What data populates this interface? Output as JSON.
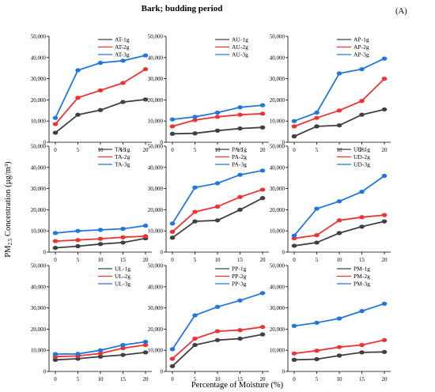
{
  "figure": {
    "title": "Bark; budding period",
    "panel_label": "(A)",
    "xlabel": "Percentage of Moisture (%)",
    "ylabel_prefix": "PM",
    "ylabel_sub": "2.5",
    "ylabel_suffix": " Concentration (µg/m³)",
    "colors": [
      "#404040",
      "#ee3333",
      "#2277dd"
    ]
  },
  "chart_data": [
    {
      "type": "line",
      "x": [
        0,
        5,
        10,
        15,
        20
      ],
      "ylim": [
        0,
        50000
      ],
      "yticks": [
        0,
        10000,
        20000,
        30000,
        40000,
        50000
      ],
      "ytick_labels": [
        "0",
        "10,000",
        "20,000",
        "30,000",
        "40,000",
        "50,000"
      ],
      "series": [
        {
          "name": "AT-1g",
          "values": [
            4500,
            13000,
            15200,
            19000,
            20200
          ]
        },
        {
          "name": "AT-2g",
          "values": [
            8600,
            21000,
            24500,
            28000,
            34500
          ]
        },
        {
          "name": "AT-3g",
          "values": [
            11500,
            34000,
            37500,
            38500,
            41000
          ]
        }
      ]
    },
    {
      "type": "line",
      "x": [
        0,
        5,
        10,
        15,
        20
      ],
      "ylim": [
        0,
        50000
      ],
      "yticks": [
        0,
        10000,
        20000,
        30000,
        40000,
        50000
      ],
      "ytick_labels": [
        "0",
        "10,000",
        "20,000",
        "30,000",
        "40,000",
        "50,000"
      ],
      "series": [
        {
          "name": "AU-1g",
          "values": [
            4000,
            4200,
            5500,
            6500,
            7000
          ]
        },
        {
          "name": "AU-2g",
          "values": [
            7500,
            10500,
            12000,
            13000,
            13500
          ]
        },
        {
          "name": "AU-3g",
          "values": [
            10800,
            12000,
            14000,
            16500,
            17500
          ]
        }
      ]
    },
    {
      "type": "line",
      "x": [
        0,
        5,
        10,
        15,
        20
      ],
      "ylim": [
        0,
        50000
      ],
      "yticks": [
        0,
        10000,
        20000,
        30000,
        40000,
        50000
      ],
      "ytick_labels": [
        "0",
        "10,000",
        "20,000",
        "30,000",
        "40,000",
        "50,000"
      ],
      "series": [
        {
          "name": "AP-1g",
          "values": [
            2800,
            7500,
            8000,
            13000,
            15500
          ]
        },
        {
          "name": "AP-2g",
          "values": [
            7500,
            11500,
            15000,
            19500,
            30000
          ]
        },
        {
          "name": "AP-3g",
          "values": [
            10000,
            14000,
            32500,
            34500,
            39500
          ]
        }
      ]
    },
    {
      "type": "line",
      "x": [
        0,
        5,
        10,
        15,
        20
      ],
      "ylim": [
        0,
        50000
      ],
      "yticks": [
        0,
        10000,
        20000,
        30000,
        40000,
        50000
      ],
      "ytick_labels": [
        "0",
        "10,000",
        "20,000",
        "30,000",
        "40,000",
        "50,000"
      ],
      "series": [
        {
          "name": "TA-1g",
          "values": [
            2000,
            2800,
            3800,
            4500,
            6500
          ]
        },
        {
          "name": "TA-2g",
          "values": [
            5200,
            5700,
            6300,
            7000,
            7500
          ]
        },
        {
          "name": "TA-3g",
          "values": [
            9000,
            10000,
            10500,
            11000,
            12500
          ]
        }
      ]
    },
    {
      "type": "line",
      "x": [
        0,
        5,
        10,
        15,
        20
      ],
      "ylim": [
        0,
        50000
      ],
      "yticks": [
        0,
        10000,
        20000,
        30000,
        40000,
        50000
      ],
      "ytick_labels": [
        "0",
        "10,000",
        "20,000",
        "30,000",
        "40,000",
        "50,000"
      ],
      "series": [
        {
          "name": "PA-1g",
          "values": [
            6800,
            14500,
            15000,
            20000,
            25500
          ]
        },
        {
          "name": "PA-2g",
          "values": [
            9600,
            19000,
            21500,
            26000,
            29500
          ]
        },
        {
          "name": "PA-3g",
          "values": [
            13500,
            30500,
            32500,
            36500,
            38500
          ]
        }
      ]
    },
    {
      "type": "line",
      "x": [
        0,
        5,
        10,
        15,
        20
      ],
      "ylim": [
        0,
        50000
      ],
      "yticks": [
        0,
        10000,
        20000,
        30000,
        40000,
        50000
      ],
      "ytick_labels": [
        "0",
        "10,000",
        "20,000",
        "30,000",
        "40,000",
        "50,000"
      ],
      "series": [
        {
          "name": "UD-1g",
          "values": [
            3000,
            4500,
            9000,
            12000,
            14500
          ]
        },
        {
          "name": "UD-2g",
          "values": [
            6500,
            8000,
            15000,
            16500,
            17500
          ]
        },
        {
          "name": "UD-3g",
          "values": [
            7800,
            20500,
            24000,
            28500,
            36000
          ]
        }
      ]
    },
    {
      "type": "line",
      "x": [
        0,
        5,
        10,
        15,
        20
      ],
      "ylim": [
        0,
        50000
      ],
      "yticks": [
        0,
        10000,
        20000,
        30000,
        40000,
        50000
      ],
      "ytick_labels": [
        "0",
        "10,000",
        "20,000",
        "30,000",
        "40,000",
        "50,000"
      ],
      "series": [
        {
          "name": "UL-1g",
          "values": [
            5500,
            6000,
            7000,
            7800,
            9000
          ]
        },
        {
          "name": "UL-2g",
          "values": [
            7000,
            7300,
            8500,
            11000,
            12500
          ]
        },
        {
          "name": "UL-3g",
          "values": [
            8200,
            8300,
            10000,
            12500,
            14000
          ]
        }
      ]
    },
    {
      "type": "line",
      "x": [
        0,
        5,
        10,
        15,
        20
      ],
      "ylim": [
        0,
        50000
      ],
      "yticks": [
        0,
        10000,
        20000,
        30000,
        40000,
        50000
      ],
      "ytick_labels": [
        "0",
        "10,000",
        "20,000",
        "30,000",
        "40,000",
        "50,000"
      ],
      "series": [
        {
          "name": "PP-1g",
          "values": [
            2500,
            12500,
            14800,
            15500,
            17500
          ]
        },
        {
          "name": "PP-2g",
          "values": [
            6000,
            15500,
            19000,
            19500,
            21000
          ]
        },
        {
          "name": "PP-3g",
          "values": [
            10500,
            26500,
            30500,
            33500,
            37000
          ]
        }
      ]
    },
    {
      "type": "line",
      "x": [
        0,
        5,
        10,
        15,
        20
      ],
      "ylim": [
        0,
        50000
      ],
      "yticks": [
        0,
        10000,
        20000,
        30000,
        40000,
        50000
      ],
      "ytick_labels": [
        "0",
        "10,000",
        "20,000",
        "30,000",
        "40,000",
        "50,000"
      ],
      "series": [
        {
          "name": "PM-1g",
          "values": [
            5500,
            5800,
            7500,
            9000,
            9200
          ]
        },
        {
          "name": "PM-2g",
          "values": [
            8500,
            9800,
            11500,
            12500,
            14800
          ]
        },
        {
          "name": "PM-3g",
          "values": [
            21500,
            23000,
            25000,
            28500,
            32000
          ]
        }
      ]
    }
  ]
}
